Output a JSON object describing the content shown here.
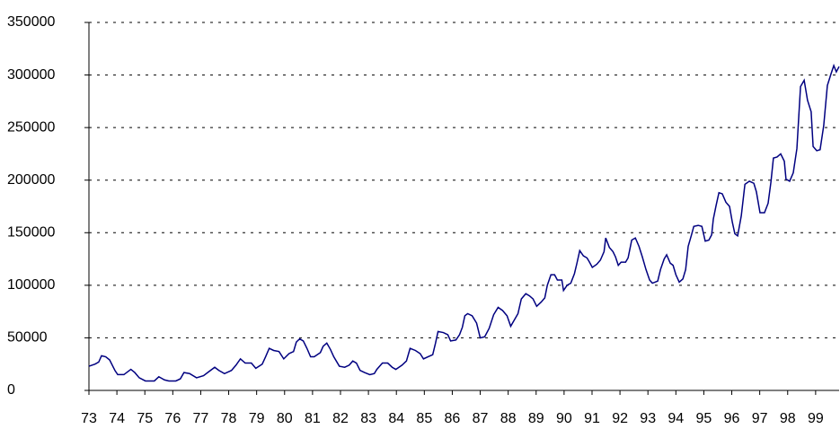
{
  "chart_data": {
    "type": "line",
    "color": "#000080",
    "grid": true,
    "x": [
      73.0,
      73.22,
      73.35,
      73.45,
      73.6,
      73.74,
      73.93,
      74.03,
      74.25,
      74.5,
      74.64,
      74.8,
      75.02,
      75.34,
      75.5,
      75.7,
      75.86,
      76.11,
      76.27,
      76.4,
      76.6,
      76.85,
      77.1,
      77.3,
      77.5,
      77.65,
      77.85,
      78.1,
      78.26,
      78.42,
      78.59,
      78.81,
      78.97,
      79.2,
      79.32,
      79.45,
      79.61,
      79.8,
      79.97,
      80.16,
      80.32,
      80.42,
      80.54,
      80.67,
      80.8,
      80.93,
      81.06,
      81.28,
      81.38,
      81.51,
      81.64,
      81.76,
      81.96,
      82.15,
      82.31,
      82.44,
      82.57,
      82.7,
      82.86,
      83.05,
      83.21,
      83.3,
      83.5,
      83.69,
      83.85,
      83.98,
      84.2,
      84.36,
      84.49,
      84.68,
      84.85,
      84.97,
      85.13,
      85.3,
      85.4,
      85.49,
      85.68,
      85.84,
      85.94,
      86.13,
      86.26,
      86.36,
      86.45,
      86.55,
      86.71,
      86.87,
      87.0,
      87.16,
      87.32,
      87.48,
      87.64,
      87.8,
      87.96,
      88.09,
      88.22,
      88.35,
      88.47,
      88.63,
      88.76,
      88.89,
      89.02,
      89.18,
      89.31,
      89.4,
      89.53,
      89.66,
      89.76,
      89.92,
      89.98,
      90.11,
      90.24,
      90.37,
      90.46,
      90.56,
      90.69,
      90.82,
      90.91,
      91.01,
      91.17,
      91.3,
      91.43,
      91.49,
      91.62,
      91.75,
      91.84,
      91.94,
      92.04,
      92.2,
      92.29,
      92.42,
      92.55,
      92.68,
      92.8,
      92.93,
      93.06,
      93.16,
      93.35,
      93.45,
      93.58,
      93.67,
      93.8,
      93.9,
      94.0,
      94.12,
      94.25,
      94.35,
      94.44,
      94.57,
      94.64,
      94.8,
      94.93,
      95.05,
      95.18,
      95.28,
      95.34,
      95.44,
      95.54,
      95.66,
      95.79,
      95.92,
      96.02,
      96.11,
      96.21,
      96.34,
      96.47,
      96.63,
      96.79,
      96.88,
      97.01,
      97.17,
      97.3,
      97.4,
      97.49,
      97.62,
      97.75,
      97.88,
      97.94,
      98.07,
      98.2,
      98.33,
      98.46,
      98.59,
      98.71,
      98.84,
      98.91,
      99.04,
      99.16,
      99.29,
      99.42,
      99.55,
      99.65,
      99.74,
      99.84
    ],
    "values": [
      23000,
      25000,
      27000,
      33000,
      32000,
      29000,
      19000,
      15000,
      15000,
      20000,
      17000,
      12000,
      9000,
      9000,
      13000,
      10000,
      9000,
      9000,
      11000,
      17000,
      16000,
      12000,
      14000,
      18000,
      22000,
      19000,
      16000,
      19000,
      24000,
      30000,
      26000,
      26000,
      21000,
      25000,
      32000,
      40000,
      38000,
      37000,
      30000,
      35000,
      37000,
      46000,
      49000,
      47000,
      40000,
      32000,
      32000,
      36000,
      42000,
      45000,
      39000,
      32000,
      23000,
      22000,
      24000,
      28000,
      26000,
      19000,
      17000,
      15000,
      16000,
      20000,
      26000,
      26000,
      22000,
      20000,
      24000,
      28000,
      40000,
      38000,
      35000,
      30000,
      32000,
      34000,
      45000,
      56000,
      55000,
      53000,
      47000,
      48000,
      53000,
      60000,
      71000,
      73000,
      71000,
      64000,
      50000,
      51000,
      59000,
      72000,
      79000,
      76000,
      71000,
      61000,
      67000,
      73000,
      87000,
      92000,
      90000,
      87000,
      80000,
      84000,
      88000,
      100000,
      110000,
      110000,
      105000,
      105000,
      95000,
      100000,
      102000,
      111000,
      121000,
      133000,
      128000,
      126000,
      122000,
      117000,
      120000,
      124000,
      132000,
      145000,
      136000,
      132000,
      127000,
      119000,
      122000,
      122000,
      126000,
      143000,
      145000,
      137000,
      127000,
      115000,
      105000,
      102000,
      104000,
      115000,
      125000,
      129000,
      121000,
      119000,
      110000,
      103000,
      106000,
      115000,
      137000,
      149000,
      156000,
      157000,
      156000,
      142000,
      143000,
      148000,
      163000,
      176000,
      188000,
      187000,
      179000,
      175000,
      160000,
      149000,
      147000,
      166000,
      196000,
      199000,
      197000,
      189000,
      169000,
      169000,
      178000,
      198000,
      221000,
      222000,
      225000,
      218000,
      201000,
      199000,
      207000,
      230000,
      289000,
      295000,
      276000,
      265000,
      232000,
      228000,
      229000,
      252000,
      290000,
      301000,
      309000,
      303000,
      308000
    ],
    "xlim": [
      73,
      99.84
    ],
    "xticks": [
      73,
      74,
      75,
      76,
      77,
      78,
      79,
      80,
      81,
      82,
      83,
      84,
      85,
      86,
      87,
      88,
      89,
      90,
      91,
      92,
      93,
      94,
      95,
      96,
      97,
      98,
      99
    ],
    "ylim": [
      0,
      350000
    ],
    "yticks": [
      0,
      50000,
      100000,
      150000,
      200000,
      250000,
      300000,
      350000
    ]
  }
}
